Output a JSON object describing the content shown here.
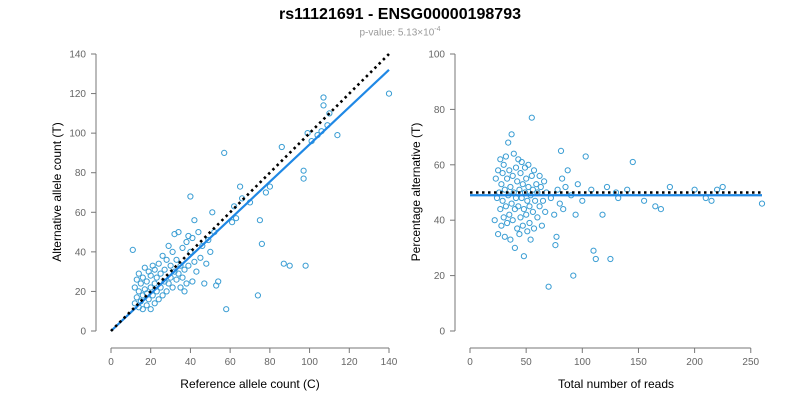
{
  "header": {
    "title": "rs11121691 - ENSG00000198793",
    "subtitle_prefix": "p-value: 5.13×10",
    "subtitle_exponent": "-4"
  },
  "colors": {
    "points": "#3a9dd3",
    "fit_line": "#1f88e5",
    "reference_line": "#000000",
    "axis": "#777777"
  },
  "chart_data": [
    {
      "type": "scatter",
      "xlabel": "Reference allele count (C)",
      "ylabel": "Alternative allele count (T)",
      "xlim": [
        0,
        140
      ],
      "ylim": [
        0,
        140
      ],
      "xticks": [
        0,
        20,
        40,
        60,
        80,
        100,
        120,
        140
      ],
      "yticks": [
        0,
        20,
        40,
        60,
        80,
        100,
        120,
        140
      ],
      "fit_line": [
        [
          0,
          0
        ],
        [
          140,
          132
        ]
      ],
      "reference_line": [
        [
          0,
          0
        ],
        [
          140,
          140
        ]
      ],
      "points": [
        [
          11,
          41
        ],
        [
          12,
          14
        ],
        [
          12,
          22
        ],
        [
          13,
          17
        ],
        [
          13,
          26
        ],
        [
          14,
          12
        ],
        [
          14,
          20
        ],
        [
          14,
          29
        ],
        [
          15,
          15
        ],
        [
          15,
          24
        ],
        [
          16,
          18
        ],
        [
          16,
          11
        ],
        [
          16,
          27
        ],
        [
          17,
          21
        ],
        [
          17,
          32
        ],
        [
          18,
          13
        ],
        [
          18,
          25
        ],
        [
          18,
          19
        ],
        [
          19,
          16
        ],
        [
          19,
          30
        ],
        [
          20,
          22
        ],
        [
          20,
          28
        ],
        [
          20,
          11
        ],
        [
          21,
          18
        ],
        [
          21,
          33
        ],
        [
          22,
          24
        ],
        [
          22,
          14
        ],
        [
          22,
          31
        ],
        [
          23,
          20
        ],
        [
          23,
          27
        ],
        [
          24,
          16
        ],
        [
          24,
          34
        ],
        [
          25,
          22
        ],
        [
          25,
          29
        ],
        [
          26,
          18
        ],
        [
          26,
          38
        ],
        [
          27,
          25
        ],
        [
          27,
          31
        ],
        [
          28,
          20
        ],
        [
          28,
          36
        ],
        [
          29,
          24
        ],
        [
          29,
          43
        ],
        [
          30,
          27
        ],
        [
          30,
          33
        ],
        [
          31,
          22
        ],
        [
          31,
          40
        ],
        [
          32,
          30
        ],
        [
          32,
          49
        ],
        [
          33,
          26
        ],
        [
          33,
          36
        ],
        [
          34,
          29
        ],
        [
          34,
          50
        ],
        [
          35,
          22
        ],
        [
          35,
          33
        ],
        [
          36,
          27
        ],
        [
          36,
          42
        ],
        [
          37,
          20
        ],
        [
          37,
          31
        ],
        [
          38,
          24
        ],
        [
          38,
          45
        ],
        [
          39,
          33
        ],
        [
          39,
          48
        ],
        [
          40,
          68
        ],
        [
          40,
          40
        ],
        [
          41,
          25
        ],
        [
          41,
          47
        ],
        [
          42,
          35
        ],
        [
          42,
          56
        ],
        [
          43,
          30
        ],
        [
          44,
          50
        ],
        [
          45,
          37
        ],
        [
          46,
          43
        ],
        [
          47,
          24
        ],
        [
          48,
          34
        ],
        [
          49,
          46
        ],
        [
          50,
          40
        ],
        [
          51,
          60
        ],
        [
          52,
          50
        ],
        [
          53,
          23
        ],
        [
          54,
          25
        ],
        [
          57,
          90
        ],
        [
          58,
          11
        ],
        [
          61,
          55
        ],
        [
          62,
          63
        ],
        [
          63,
          57
        ],
        [
          65,
          73
        ],
        [
          66,
          67
        ],
        [
          70,
          65
        ],
        [
          74,
          18
        ],
        [
          75,
          56
        ],
        [
          76,
          44
        ],
        [
          78,
          70
        ],
        [
          80,
          73
        ],
        [
          86,
          93
        ],
        [
          87,
          34
        ],
        [
          90,
          33
        ],
        [
          97,
          81
        ],
        [
          97,
          77
        ],
        [
          98,
          33
        ],
        [
          99,
          100
        ],
        [
          101,
          96
        ],
        [
          104,
          99
        ],
        [
          106,
          101
        ],
        [
          107,
          118
        ],
        [
          107,
          114
        ],
        [
          109,
          104
        ],
        [
          110,
          110
        ],
        [
          114,
          99
        ],
        [
          140,
          120
        ]
      ]
    },
    {
      "type": "scatter",
      "xlabel": "Total number of reads",
      "ylabel": "Percentage alternative (T)",
      "xlim": [
        0,
        260
      ],
      "ylim": [
        0,
        100
      ],
      "xticks": [
        0,
        50,
        100,
        150,
        200,
        250
      ],
      "yticks": [
        0,
        20,
        40,
        60,
        80,
        100
      ],
      "fit_line": [
        [
          0,
          49
        ],
        [
          260,
          49
        ]
      ],
      "reference_line": [
        [
          0,
          50
        ],
        [
          260,
          50
        ]
      ],
      "points": [
        [
          22,
          40
        ],
        [
          23,
          55
        ],
        [
          24,
          48
        ],
        [
          25,
          58
        ],
        [
          25,
          35
        ],
        [
          26,
          50
        ],
        [
          27,
          44
        ],
        [
          27,
          62
        ],
        [
          28,
          53
        ],
        [
          28,
          38
        ],
        [
          29,
          57
        ],
        [
          29,
          47
        ],
        [
          30,
          41
        ],
        [
          30,
          60
        ],
        [
          31,
          51
        ],
        [
          31,
          34
        ],
        [
          32,
          45
        ],
        [
          32,
          63
        ],
        [
          33,
          55
        ],
        [
          33,
          39
        ],
        [
          34,
          49
        ],
        [
          34,
          68
        ],
        [
          35,
          42
        ],
        [
          35,
          58
        ],
        [
          36,
          52
        ],
        [
          36,
          33
        ],
        [
          37,
          46
        ],
        [
          37,
          71
        ],
        [
          38,
          56
        ],
        [
          38,
          40
        ],
        [
          39,
          50
        ],
        [
          39,
          64
        ],
        [
          40,
          44
        ],
        [
          40,
          30
        ],
        [
          41,
          59
        ],
        [
          41,
          48
        ],
        [
          42,
          37
        ],
        [
          42,
          54
        ],
        [
          43,
          62
        ],
        [
          43,
          45
        ],
        [
          44,
          51
        ],
        [
          44,
          35
        ],
        [
          45,
          57
        ],
        [
          45,
          41
        ],
        [
          46,
          48
        ],
        [
          46,
          61
        ],
        [
          47,
          38
        ],
        [
          47,
          53
        ],
        [
          48,
          44
        ],
        [
          48,
          27
        ],
        [
          49,
          59
        ],
        [
          49,
          50
        ],
        [
          50,
          42
        ],
        [
          50,
          55
        ],
        [
          51,
          47
        ],
        [
          51,
          36
        ],
        [
          52,
          52
        ],
        [
          52,
          60
        ],
        [
          53,
          45
        ],
        [
          53,
          39
        ],
        [
          54,
          49
        ],
        [
          54,
          33
        ],
        [
          55,
          56
        ],
        [
          55,
          77
        ],
        [
          56,
          43
        ],
        [
          56,
          51
        ],
        [
          57,
          37
        ],
        [
          57,
          58
        ],
        [
          58,
          47
        ],
        [
          59,
          53
        ],
        [
          60,
          41
        ],
        [
          60,
          50
        ],
        [
          62,
          45
        ],
        [
          62,
          56
        ],
        [
          63,
          52
        ],
        [
          64,
          38
        ],
        [
          65,
          47
        ],
        [
          66,
          54
        ],
        [
          67,
          43
        ],
        [
          68,
          50
        ],
        [
          70,
          16
        ],
        [
          72,
          48
        ],
        [
          75,
          42
        ],
        [
          76,
          31
        ],
        [
          77,
          34
        ],
        [
          78,
          51
        ],
        [
          80,
          46
        ],
        [
          81,
          65
        ],
        [
          82,
          55
        ],
        [
          83,
          44
        ],
        [
          85,
          52
        ],
        [
          87,
          58
        ],
        [
          90,
          49
        ],
        [
          92,
          20
        ],
        [
          94,
          42
        ],
        [
          96,
          53
        ],
        [
          100,
          47
        ],
        [
          103,
          63
        ],
        [
          108,
          51
        ],
        [
          110,
          29
        ],
        [
          112,
          26
        ],
        [
          118,
          42
        ],
        [
          122,
          52
        ],
        [
          125,
          26
        ],
        [
          130,
          50
        ],
        [
          132,
          48
        ],
        [
          140,
          51
        ],
        [
          145,
          61
        ],
        [
          155,
          47
        ],
        [
          165,
          45
        ],
        [
          170,
          44
        ],
        [
          178,
          52
        ],
        [
          200,
          51
        ],
        [
          210,
          48
        ],
        [
          215,
          47
        ],
        [
          220,
          51
        ],
        [
          225,
          52
        ],
        [
          260,
          46
        ]
      ]
    }
  ]
}
